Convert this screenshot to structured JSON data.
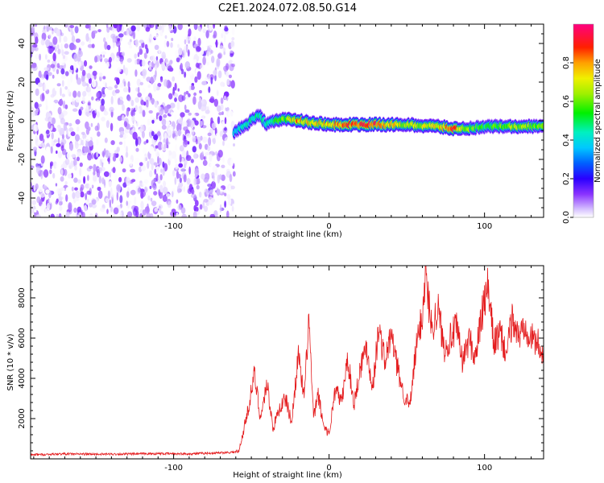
{
  "figure": {
    "title": "C2E1.2024.072.08.50.G14"
  },
  "chart_data": [
    {
      "type": "heatmap",
      "title": "C2E1.2024.072.08.50.G14",
      "xlabel": "Height of straight line (km)",
      "ylabel": "Frequency (Hz)",
      "xlim": [
        -192,
        138
      ],
      "ylim": [
        -50,
        50
      ],
      "xticks": [
        -100,
        0,
        100
      ],
      "yticks": [
        -40,
        -20,
        0,
        20,
        40
      ],
      "grid": false,
      "colorbar": {
        "label": "Normalized spectral amplitude",
        "range": [
          0,
          1
        ],
        "ticks": [
          0.0,
          0.2,
          0.4,
          0.6,
          0.8
        ],
        "colormap": [
          "#ffffff",
          "#b48cff",
          "#6a00ff",
          "#1a00ff",
          "#0090ff",
          "#00f0e8",
          "#00f000",
          "#c8f000",
          "#ffff00",
          "#ff9900",
          "#ff0000",
          "#ff0080"
        ]
      },
      "noise_region": {
        "x_range": [
          -192,
          -61
        ],
        "y_range": [
          -50,
          50
        ],
        "amplitude_range": [
          0.0,
          0.15
        ]
      },
      "carrier_track": [
        {
          "x": -61,
          "freq": -6,
          "amp": 0.4
        },
        {
          "x": -55,
          "freq": -3,
          "amp": 0.45
        },
        {
          "x": -45,
          "freq": 3,
          "amp": 0.5
        },
        {
          "x": -40,
          "freq": -2,
          "amp": 0.45
        },
        {
          "x": -35,
          "freq": 0,
          "amp": 0.55
        },
        {
          "x": -30,
          "freq": 1,
          "amp": 0.6
        },
        {
          "x": -20,
          "freq": 0,
          "amp": 0.85
        },
        {
          "x": -10,
          "freq": -1,
          "amp": 0.75
        },
        {
          "x": 0,
          "freq": -2,
          "amp": 0.8
        },
        {
          "x": 10,
          "freq": -2,
          "amp": 0.9
        },
        {
          "x": 30,
          "freq": -2,
          "amp": 0.95
        },
        {
          "x": 50,
          "freq": -2,
          "amp": 0.7
        },
        {
          "x": 70,
          "freq": -3,
          "amp": 0.75
        },
        {
          "x": 80,
          "freq": -4,
          "amp": 0.95
        },
        {
          "x": 90,
          "freq": -4,
          "amp": 0.65
        },
        {
          "x": 100,
          "freq": -3,
          "amp": 0.55
        },
        {
          "x": 120,
          "freq": -3,
          "amp": 0.7
        },
        {
          "x": 138,
          "freq": -3,
          "amp": 0.65
        }
      ]
    },
    {
      "type": "line",
      "title": "",
      "xlabel": "Height of straight line (km)",
      "ylabel": "SNR (10 * v/v)",
      "xlim": [
        -192,
        138
      ],
      "ylim": [
        0,
        9600
      ],
      "xticks": [
        -100,
        0,
        100
      ],
      "yticks": [
        2000,
        4000,
        6000,
        8000
      ],
      "grid": false,
      "series": [
        {
          "color": "#e41a1c",
          "x": [
            -192,
            -170,
            -150,
            -130,
            -110,
            -90,
            -70,
            -58,
            -52,
            -48,
            -44,
            -40,
            -36,
            -32,
            -28,
            -24,
            -20,
            -16,
            -13,
            -10,
            -7,
            -4,
            0,
            4,
            8,
            12,
            16,
            20,
            24,
            28,
            32,
            36,
            40,
            44,
            48,
            52,
            56,
            60,
            62,
            66,
            70,
            74,
            78,
            82,
            86,
            90,
            94,
            98,
            102,
            106,
            110,
            114,
            118,
            122,
            126,
            130,
            134,
            138
          ],
          "y": [
            200,
            250,
            230,
            240,
            260,
            250,
            300,
            350,
            2500,
            4200,
            2000,
            3800,
            1500,
            2500,
            3000,
            1800,
            5200,
            3000,
            7000,
            2000,
            3200,
            1800,
            1200,
            3500,
            2800,
            5000,
            2700,
            4500,
            5600,
            3500,
            6500,
            4800,
            6200,
            4500,
            3200,
            2600,
            5500,
            7200,
            9200,
            6500,
            7500,
            5500,
            6000,
            6500,
            4800,
            6000,
            5000,
            7000,
            8500,
            5800,
            6200,
            5200,
            7000,
            6000,
            6800,
            6000,
            5800,
            5200
          ]
        }
      ]
    }
  ]
}
